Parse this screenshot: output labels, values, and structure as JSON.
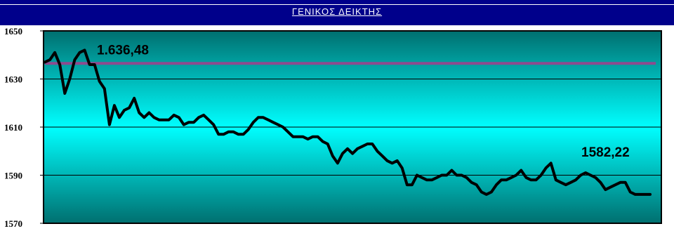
{
  "title": "ΓΕΝΙΚΟΣ  ΔΕΙΚΤΗΣ",
  "colors": {
    "header": "#00008b",
    "plot_top": "#006f6f",
    "plot_mid": "#00ffff",
    "plot_bottom": "#006f6f",
    "series": "#000000",
    "reference_line": "#8e4a8e",
    "grid": "#000000"
  },
  "chart_data": {
    "type": "line",
    "title": "ΓΕΝΙΚΟΣ  ΔΕΙΚΤΗΣ",
    "xlabel": "",
    "ylabel": "",
    "ylim": [
      1570,
      1650
    ],
    "yticks": [
      "1650",
      "1630",
      "1610",
      "1590",
      "1570"
    ],
    "grid": true,
    "reference_line": {
      "value": 1636.48,
      "label": "1.636,48"
    },
    "end_label": {
      "value": 1582.22,
      "label": "1582,22"
    },
    "series": [
      {
        "values": [
          1637,
          1638,
          1641,
          1636,
          1624,
          1630,
          1638,
          1641,
          1642,
          1636,
          1636,
          1629,
          1626,
          1611,
          1619,
          1614,
          1617,
          1618,
          1622,
          1616,
          1614,
          1616,
          1614,
          1613,
          1613,
          1613,
          1615,
          1614,
          1611,
          1612,
          1612,
          1614,
          1615,
          1613,
          1611,
          1607,
          1607,
          1608,
          1608,
          1607,
          1607,
          1609,
          1612,
          1614,
          1614,
          1613,
          1612,
          1611,
          1610,
          1608,
          1606,
          1606,
          1606,
          1605,
          1606,
          1606,
          1604,
          1603,
          1598,
          1595,
          1599,
          1601,
          1599,
          1601,
          1602,
          1603,
          1603,
          1600,
          1598,
          1596,
          1595,
          1596,
          1593,
          1586,
          1586,
          1590,
          1589,
          1588,
          1588,
          1589,
          1590,
          1590,
          1592,
          1590,
          1590,
          1589,
          1587,
          1586,
          1583,
          1582,
          1583,
          1586,
          1588,
          1588,
          1589,
          1590,
          1592,
          1589,
          1588,
          1588,
          1590,
          1593,
          1595,
          1588,
          1587,
          1586,
          1587,
          1588,
          1590,
          1591,
          1590,
          1589,
          1587,
          1584,
          1585,
          1586,
          1587,
          1587,
          1583,
          1582,
          1582,
          1582,
          1582
        ]
      }
    ]
  }
}
